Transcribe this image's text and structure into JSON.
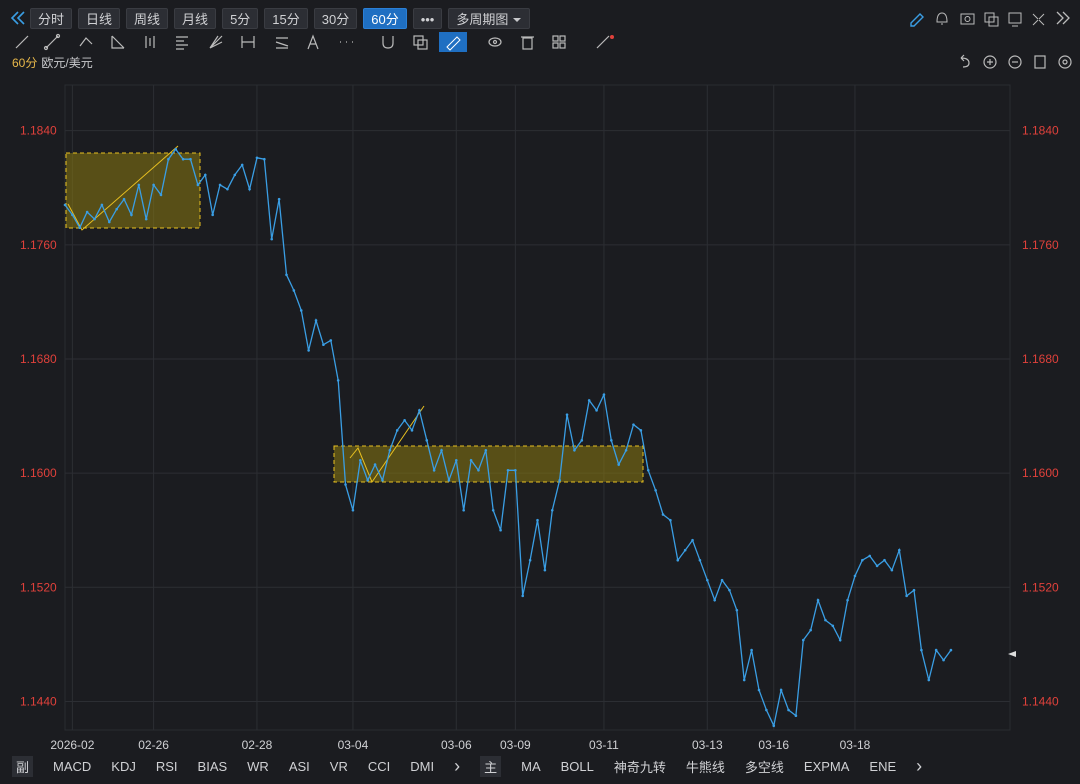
{
  "toolbar": {
    "periods": [
      "分时",
      "日线",
      "周线",
      "月线",
      "5分",
      "15分",
      "30分",
      "60分"
    ],
    "active_index": 7,
    "multi": "多周期图"
  },
  "symbol": {
    "period": "60分",
    "name": "欧元/美元"
  },
  "chart_data": {
    "type": "line",
    "color": "#3a9ee4",
    "grid": true,
    "values": [
      1.1788,
      1.1781,
      1.1772,
      1.1783,
      1.1778,
      1.1788,
      1.1776,
      1.1785,
      1.1792,
      1.1781,
      1.1802,
      1.1778,
      1.1802,
      1.1795,
      1.182,
      1.1827,
      1.182,
      1.182,
      1.1802,
      1.1809,
      1.1781,
      1.1802,
      1.1799,
      1.1809,
      1.1816,
      1.1799,
      1.1821,
      1.182,
      1.1764,
      1.1792,
      1.1739,
      1.1728,
      1.1714,
      1.1686,
      1.1707,
      1.169,
      1.1693,
      1.1665,
      1.1592,
      1.1574,
      1.1609,
      1.1595,
      1.1606,
      1.1595,
      1.1616,
      1.163,
      1.1637,
      1.163,
      1.1644,
      1.1623,
      1.1602,
      1.1616,
      1.1595,
      1.1609,
      1.1574,
      1.1609,
      1.1602,
      1.1616,
      1.1574,
      1.156,
      1.1602,
      1.1602,
      1.1514,
      1.1539,
      1.1567,
      1.1532,
      1.1574,
      1.1595,
      1.1641,
      1.1616,
      1.1623,
      1.1651,
      1.1644,
      1.1655,
      1.1623,
      1.1606,
      1.1616,
      1.1634,
      1.163,
      1.1602,
      1.1588,
      1.1571,
      1.1567,
      1.1539,
      1.1546,
      1.1553,
      1.1539,
      1.1525,
      1.1511,
      1.1525,
      1.1518,
      1.1504,
      1.1455,
      1.1476,
      1.1448,
      1.1434,
      1.1423,
      1.1448,
      1.1434,
      1.143,
      1.1483,
      1.149,
      1.1511,
      1.1497,
      1.1493,
      1.1483,
      1.1511,
      1.1528,
      1.1539,
      1.1542,
      1.1535,
      1.1539,
      1.1532,
      1.1546,
      1.1514,
      1.1518,
      1.1476,
      1.1455,
      1.1476,
      1.1469,
      1.1476
    ],
    "xlim": [
      0,
      128
    ],
    "xticks": [
      {
        "value": 1,
        "label": "2026-02"
      },
      {
        "value": 12,
        "label": "02-26"
      },
      {
        "value": 26,
        "label": "02-28"
      },
      {
        "value": 39,
        "label": "03-04"
      },
      {
        "value": 53,
        "label": "03-06"
      },
      {
        "value": 61,
        "label": "03-09"
      },
      {
        "value": 73,
        "label": "03-11"
      },
      {
        "value": 87,
        "label": "03-13"
      },
      {
        "value": 96,
        "label": "03-16"
      },
      {
        "value": 107,
        "label": "03-18"
      }
    ],
    "ylim": [
      1.142,
      1.1872
    ],
    "yticks": [
      {
        "value": 1.144,
        "label": "1.1440"
      },
      {
        "value": 1.152,
        "label": "1.1520"
      },
      {
        "value": 1.16,
        "label": "1.1600"
      },
      {
        "value": 1.168,
        "label": "1.1680"
      },
      {
        "value": 1.176,
        "label": "1.1760"
      },
      {
        "value": 1.184,
        "label": "1.1840"
      }
    ]
  },
  "indicators": {
    "sub_label": "副",
    "sub": [
      "MACD",
      "KDJ",
      "RSI",
      "BIAS",
      "WR",
      "ASI",
      "VR",
      "CCI",
      "DMI"
    ],
    "main_label": "主",
    "main": [
      "MA",
      "BOLL",
      "神奇九转",
      "牛熊线",
      "多空线",
      "EXPMA",
      "ENE"
    ]
  }
}
